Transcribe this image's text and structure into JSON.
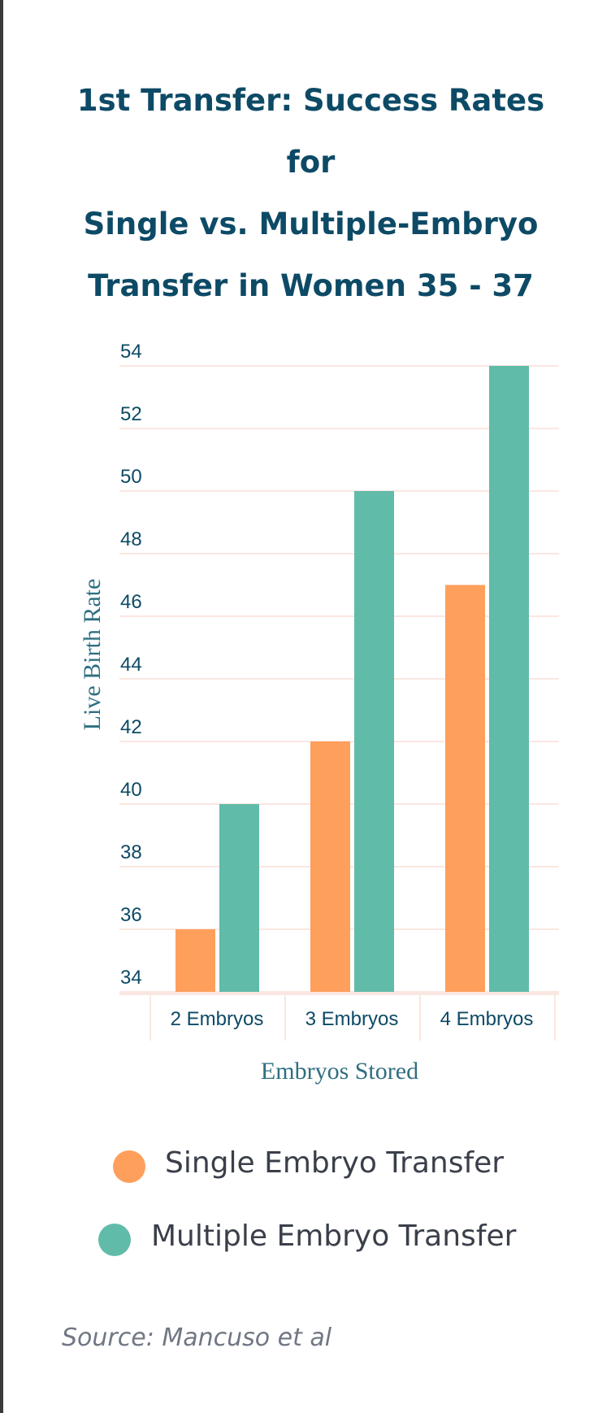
{
  "chart_data": {
    "type": "bar",
    "title": "1st Transfer: Success Rates for Single vs. Multiple-Embryo Transfer in Women 35 - 37",
    "title_lines": [
      "1st Transfer: Success Rates for",
      "Single vs. Multiple-Embryo",
      "Transfer in Women 35 - 37"
    ],
    "categories": [
      "2 Embryos",
      "3 Embryos",
      "4 Embryos"
    ],
    "series": [
      {
        "name": "Single Embryo Transfer",
        "color": "#ff9f5c",
        "values": [
          36,
          42,
          47
        ]
      },
      {
        "name": "Multiple Embryo Transfer",
        "color": "#61bba9",
        "values": [
          40,
          50,
          54
        ]
      }
    ],
    "xlabel": "Embryos Stored",
    "ylabel": "Live Birth Rate",
    "ylim": [
      34,
      54
    ],
    "yticks": [
      34,
      36,
      38,
      40,
      42,
      44,
      46,
      48,
      50,
      52,
      54
    ],
    "grid": true,
    "legend_position": "bottom"
  },
  "source": "Source: Mancuso et al",
  "colors": {
    "title": "#0d4a66",
    "gridline": "#fbe7e1",
    "single": "#ff9f5c",
    "multiple": "#61bba9"
  }
}
